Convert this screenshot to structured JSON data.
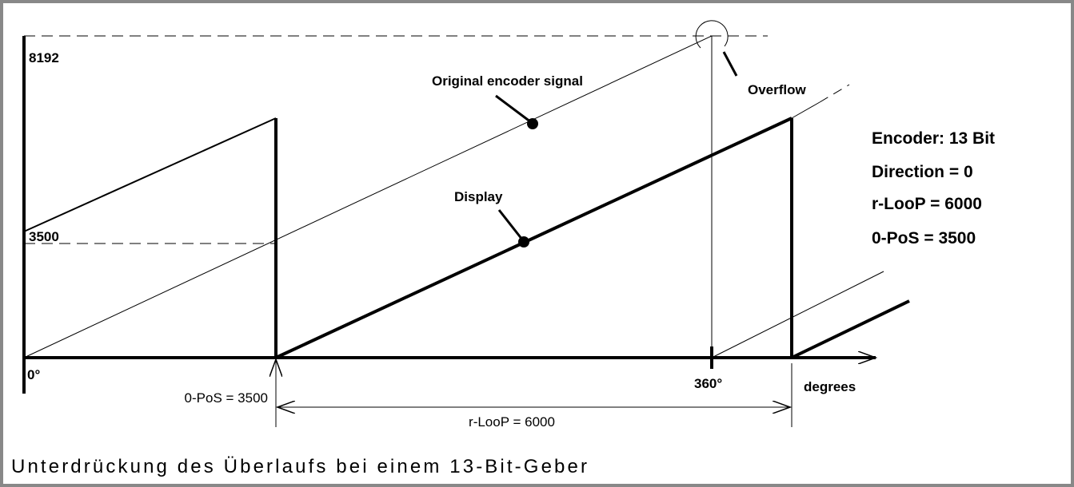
{
  "labels": {
    "y_max": "8192",
    "y_offset": "3500",
    "origin": "0°",
    "original": "Original encoder signal",
    "display": "Display",
    "overflow": "Overflow",
    "deg360": "360°",
    "degrees": "degrees",
    "dim_pos": "0-PoS = 3500",
    "dim_loop": "r-LooP  = 6000"
  },
  "settings": [
    "Encoder: 13 Bit",
    "Direction = 0",
    "r-LooP = 6000",
    "0-PoS = 3500"
  ],
  "caption": "Unterdrückung des Überlaufs bei einem 13-Bit-Geber"
}
